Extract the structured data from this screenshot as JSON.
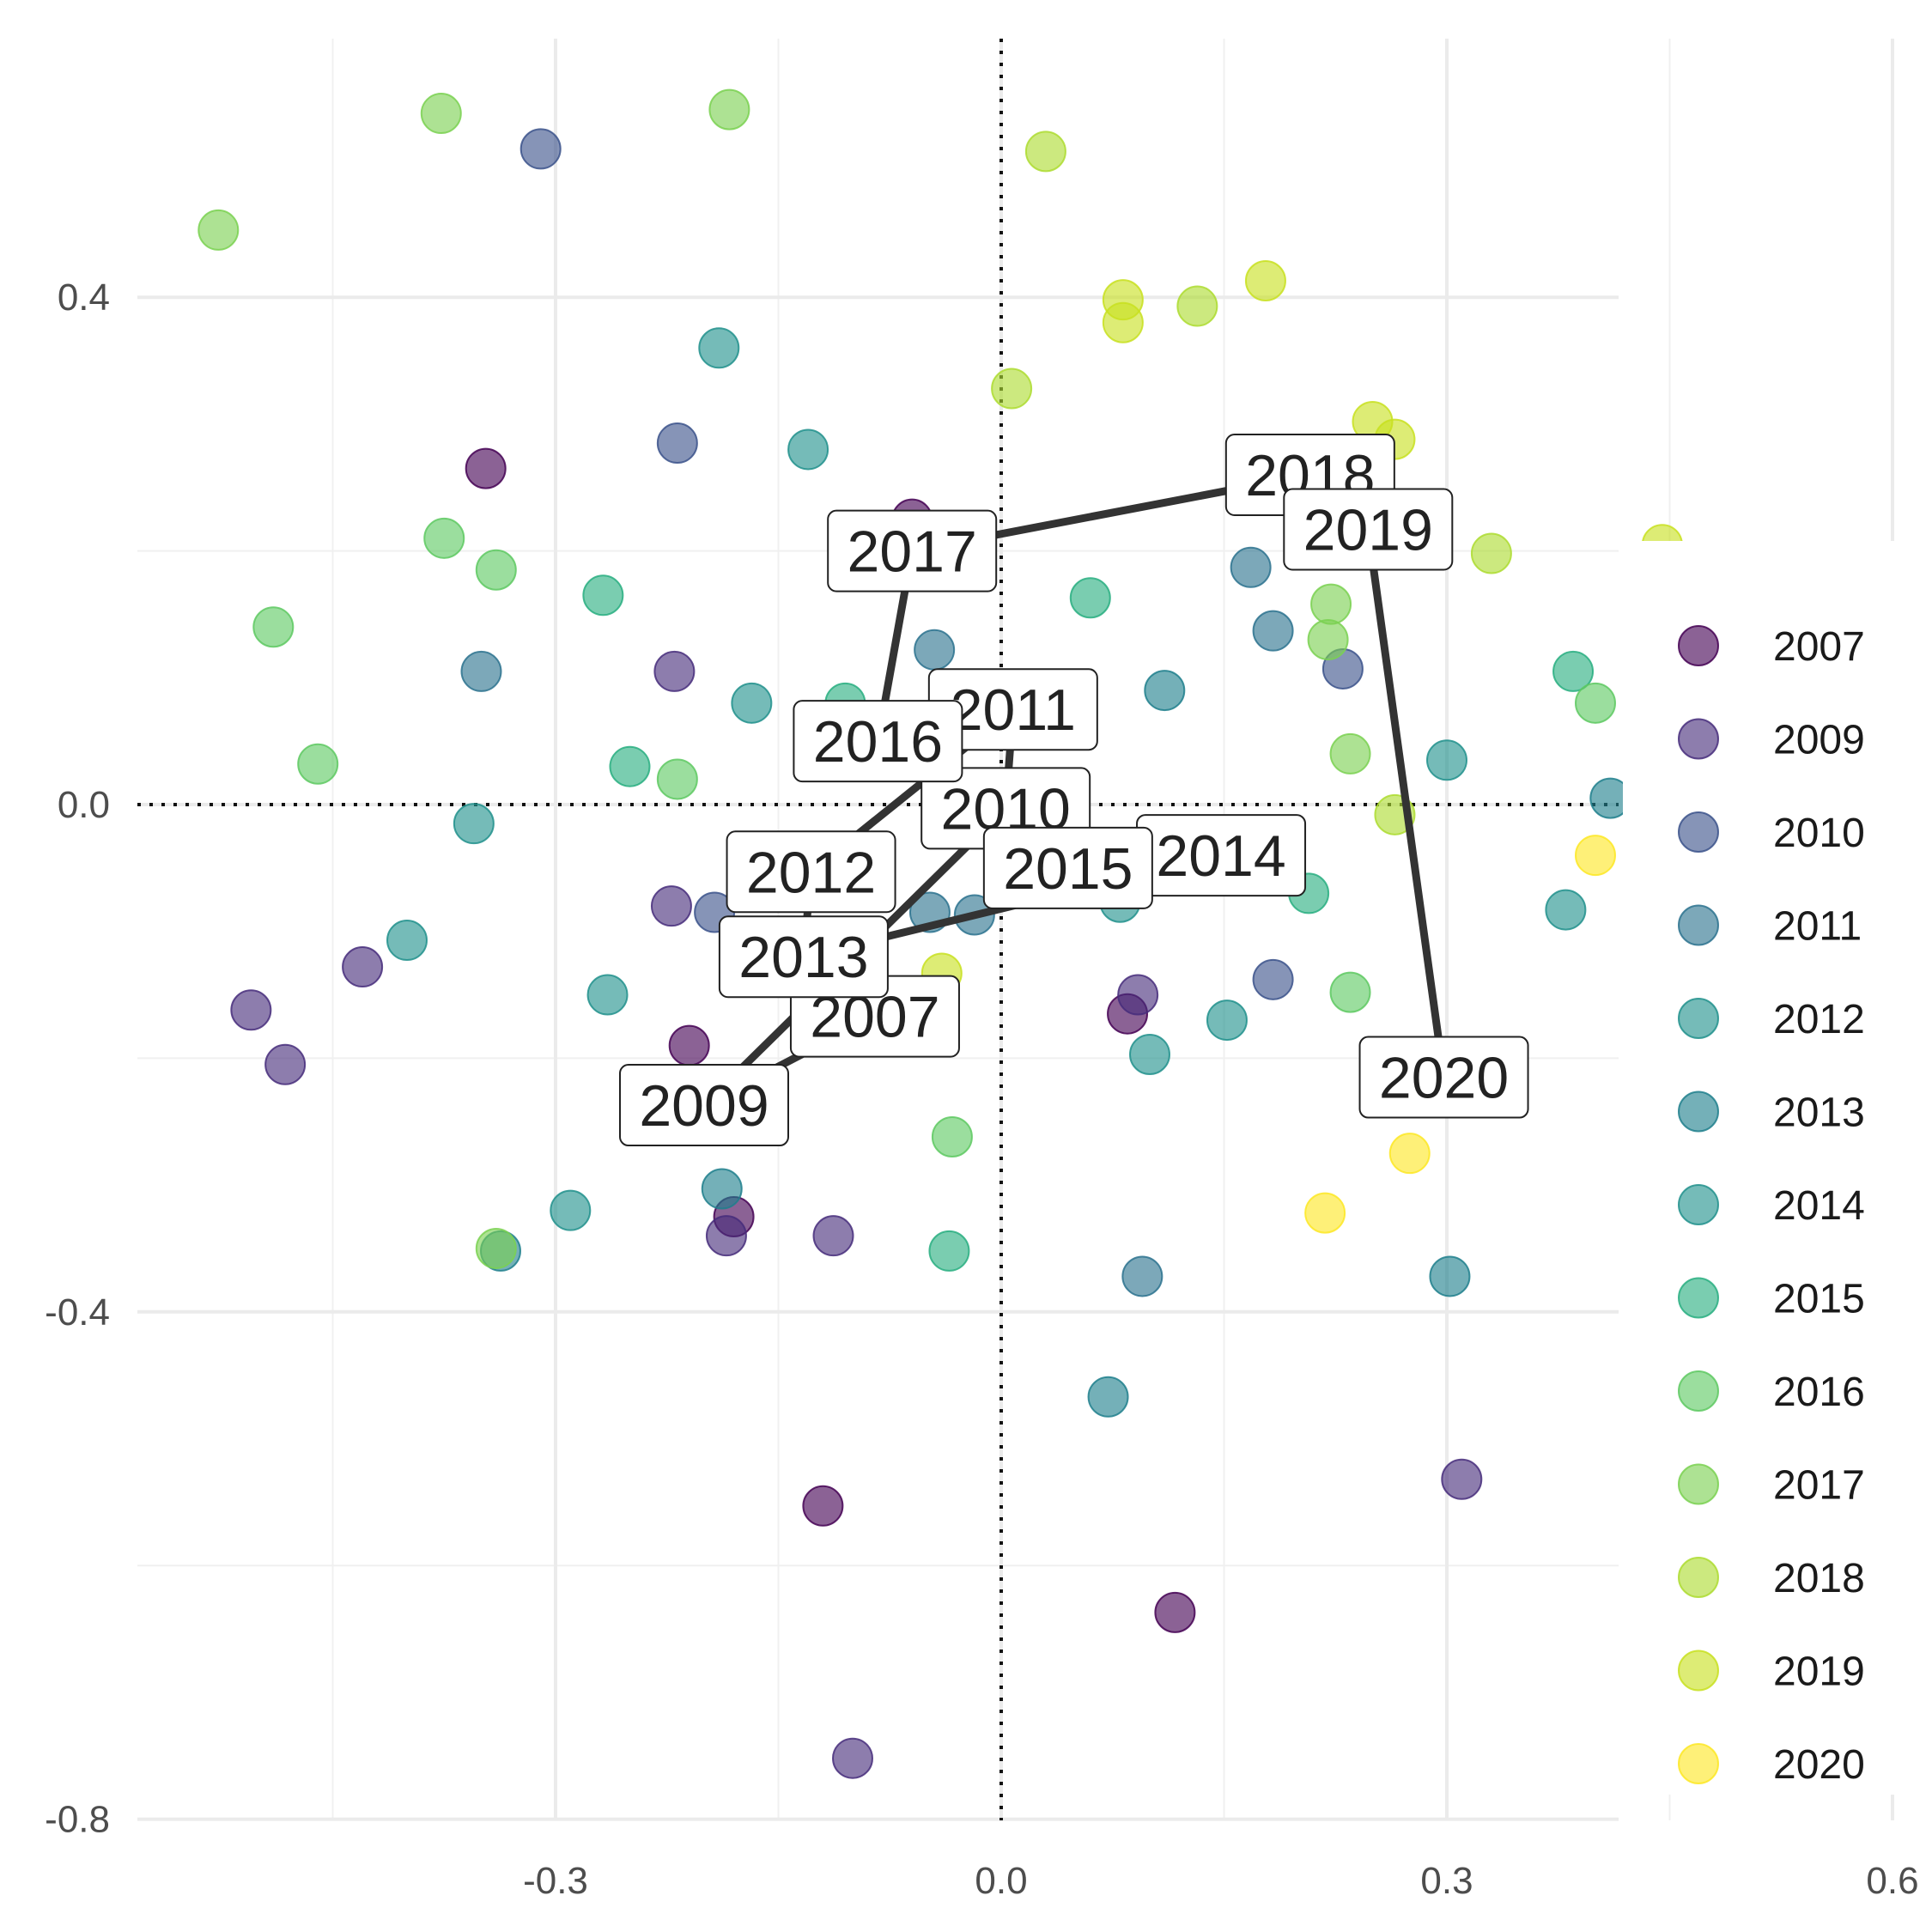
{
  "chart_data": {
    "type": "scatter",
    "title": "",
    "xlabel": "",
    "ylabel": "",
    "xlim": [
      -0.6,
      0.6
    ],
    "ylim": [
      -0.8,
      0.6
    ],
    "x_ticks": [
      "-0.3",
      "0.0",
      "0.3",
      "0.6"
    ],
    "y_ticks": [
      "0.4",
      "0.0",
      "-0.4",
      "-0.8"
    ],
    "x_tick_values": [
      -0.3,
      0.0,
      0.3,
      0.6
    ],
    "y_tick_values": [
      0.4,
      0.0,
      -0.4,
      -0.8
    ],
    "grid": true,
    "reference_lines": "dotted lines at x = 0 and y = 0",
    "legend_placement": "right",
    "legend": [
      "2007",
      "2009",
      "2010",
      "2011",
      "2012",
      "2013",
      "2014",
      "2015",
      "2016",
      "2017",
      "2018",
      "2019",
      "2020"
    ],
    "colors": {
      "2007": "#440154",
      "2009": "#472d7b",
      "2010": "#3b528b",
      "2011": "#2c728e",
      "2012": "#21918c",
      "2013": "#1f7f8c",
      "2014": "#21918c",
      "2015": "#28ae80",
      "2016": "#5ec962",
      "2017": "#7ad151",
      "2018": "#addc30",
      "2019": "#c8e020",
      "2020": "#fde725"
    },
    "points": [
      {
        "year": "2007",
        "x": -0.347,
        "y": 0.265
      },
      {
        "year": "2007",
        "x": -0.06,
        "y": 0.225
      },
      {
        "year": "2007",
        "x": -0.21,
        "y": -0.19
      },
      {
        "year": "2007",
        "x": -0.18,
        "y": -0.325
      },
      {
        "year": "2007",
        "x": -0.12,
        "y": -0.553
      },
      {
        "year": "2007",
        "x": 0.085,
        "y": -0.165
      },
      {
        "year": "2007",
        "x": 0.117,
        "y": -0.637
      },
      {
        "year": "2009",
        "x": -0.22,
        "y": 0.105
      },
      {
        "year": "2009",
        "x": -0.222,
        "y": -0.08
      },
      {
        "year": "2009",
        "x": -0.43,
        "y": -0.128
      },
      {
        "year": "2009",
        "x": -0.505,
        "y": -0.162
      },
      {
        "year": "2009",
        "x": -0.482,
        "y": -0.205
      },
      {
        "year": "2009",
        "x": -0.185,
        "y": -0.34
      },
      {
        "year": "2009",
        "x": -0.113,
        "y": -0.34
      },
      {
        "year": "2009",
        "x": -0.1,
        "y": -0.752
      },
      {
        "year": "2009",
        "x": 0.092,
        "y": -0.15
      },
      {
        "year": "2009",
        "x": 0.31,
        "y": -0.532
      },
      {
        "year": "2010",
        "x": -0.31,
        "y": 0.517
      },
      {
        "year": "2010",
        "x": -0.218,
        "y": 0.285
      },
      {
        "year": "2010",
        "x": -0.193,
        "y": -0.085
      },
      {
        "year": "2010",
        "x": 0.183,
        "y": -0.138
      },
      {
        "year": "2010",
        "x": 0.23,
        "y": 0.107
      },
      {
        "year": "2011",
        "x": -0.35,
        "y": 0.105
      },
      {
        "year": "2011",
        "x": -0.045,
        "y": 0.122
      },
      {
        "year": "2011",
        "x": -0.048,
        "y": -0.085
      },
      {
        "year": "2011",
        "x": -0.018,
        "y": -0.087
      },
      {
        "year": "2011",
        "x": 0.168,
        "y": 0.187
      },
      {
        "year": "2011",
        "x": 0.183,
        "y": 0.137
      },
      {
        "year": "2011",
        "x": 0.095,
        "y": -0.372
      },
      {
        "year": "2012",
        "x": -0.19,
        "y": 0.36
      },
      {
        "year": "2012",
        "x": -0.168,
        "y": 0.08
      },
      {
        "year": "2012",
        "x": -0.355,
        "y": -0.015
      },
      {
        "year": "2012",
        "x": -0.4,
        "y": -0.107
      },
      {
        "year": "2012",
        "x": -0.265,
        "y": -0.15
      },
      {
        "year": "2012",
        "x": -0.29,
        "y": -0.32
      },
      {
        "year": "2012",
        "x": 0.152,
        "y": -0.17
      },
      {
        "year": "2013",
        "x": -0.188,
        "y": -0.303
      },
      {
        "year": "2013",
        "x": -0.337,
        "y": -0.352
      },
      {
        "year": "2013",
        "x": 0.11,
        "y": 0.09
      },
      {
        "year": "2013",
        "x": 0.072,
        "y": -0.467
      },
      {
        "year": "2013",
        "x": 0.302,
        "y": -0.372
      },
      {
        "year": "2013",
        "x": 0.41,
        "y": 0.005
      },
      {
        "year": "2014",
        "x": -0.13,
        "y": 0.28
      },
      {
        "year": "2014",
        "x": 0.1,
        "y": -0.197
      },
      {
        "year": "2014",
        "x": 0.3,
        "y": 0.035
      },
      {
        "year": "2014",
        "x": 0.38,
        "y": -0.083
      },
      {
        "year": "2014",
        "x": 0.08,
        "y": -0.077
      },
      {
        "year": "2015",
        "x": -0.268,
        "y": 0.165
      },
      {
        "year": "2015",
        "x": -0.25,
        "y": 0.03
      },
      {
        "year": "2015",
        "x": -0.105,
        "y": 0.08
      },
      {
        "year": "2015",
        "x": -0.035,
        "y": -0.352
      },
      {
        "year": "2015",
        "x": 0.207,
        "y": -0.07
      },
      {
        "year": "2015",
        "x": 0.06,
        "y": 0.163
      },
      {
        "year": "2015",
        "x": 0.385,
        "y": 0.105
      },
      {
        "year": "2016",
        "x": -0.375,
        "y": 0.21
      },
      {
        "year": "2016",
        "x": -0.34,
        "y": 0.185
      },
      {
        "year": "2016",
        "x": -0.49,
        "y": 0.14
      },
      {
        "year": "2016",
        "x": -0.46,
        "y": 0.032
      },
      {
        "year": "2016",
        "x": -0.218,
        "y": 0.02
      },
      {
        "year": "2016",
        "x": -0.033,
        "y": -0.262
      },
      {
        "year": "2016",
        "x": 0.235,
        "y": -0.148
      },
      {
        "year": "2016",
        "x": 0.4,
        "y": 0.08
      },
      {
        "year": "2017",
        "x": -0.527,
        "y": 0.453
      },
      {
        "year": "2017",
        "x": -0.377,
        "y": 0.545
      },
      {
        "year": "2017",
        "x": -0.183,
        "y": 0.548
      },
      {
        "year": "2017",
        "x": -0.34,
        "y": -0.35
      },
      {
        "year": "2017",
        "x": 0.222,
        "y": 0.158
      },
      {
        "year": "2017",
        "x": 0.22,
        "y": 0.13
      },
      {
        "year": "2017",
        "x": 0.235,
        "y": 0.04
      },
      {
        "year": "2018",
        "x": 0.03,
        "y": 0.515
      },
      {
        "year": "2018",
        "x": 0.007,
        "y": 0.328
      },
      {
        "year": "2018",
        "x": 0.132,
        "y": 0.393
      },
      {
        "year": "2018",
        "x": 0.33,
        "y": 0.198
      },
      {
        "year": "2018",
        "x": 0.265,
        "y": -0.008
      },
      {
        "year": "2019",
        "x": 0.082,
        "y": 0.398
      },
      {
        "year": "2019",
        "x": 0.082,
        "y": 0.38
      },
      {
        "year": "2019",
        "x": 0.178,
        "y": 0.413
      },
      {
        "year": "2019",
        "x": 0.25,
        "y": 0.302
      },
      {
        "year": "2019",
        "x": 0.265,
        "y": 0.288
      },
      {
        "year": "2019",
        "x": 0.445,
        "y": 0.205
      },
      {
        "year": "2019",
        "x": -0.04,
        "y": -0.133
      },
      {
        "year": "2020",
        "x": 0.4,
        "y": -0.04
      },
      {
        "year": "2020",
        "x": 0.275,
        "y": -0.275
      },
      {
        "year": "2020",
        "x": 0.218,
        "y": -0.322
      }
    ],
    "trajectory": [
      {
        "year": "2007",
        "x": -0.085,
        "y": -0.167
      },
      {
        "year": "2009",
        "x": -0.2,
        "y": -0.237
      },
      {
        "year": "2010",
        "x": 0.003,
        "y": -0.003
      },
      {
        "year": "2011",
        "x": 0.008,
        "y": 0.075
      },
      {
        "year": "2012",
        "x": -0.128,
        "y": -0.053
      },
      {
        "year": "2013",
        "x": -0.133,
        "y": -0.12
      },
      {
        "year": "2014",
        "x": 0.148,
        "y": -0.04
      },
      {
        "year": "2015",
        "x": 0.045,
        "y": -0.05
      },
      {
        "year": "2016",
        "x": -0.083,
        "y": 0.05
      },
      {
        "year": "2017",
        "x": -0.06,
        "y": 0.2
      },
      {
        "year": "2018",
        "x": 0.208,
        "y": 0.26
      },
      {
        "year": "2019",
        "x": 0.247,
        "y": 0.217
      },
      {
        "year": "2020",
        "x": 0.298,
        "y": -0.215
      }
    ]
  }
}
